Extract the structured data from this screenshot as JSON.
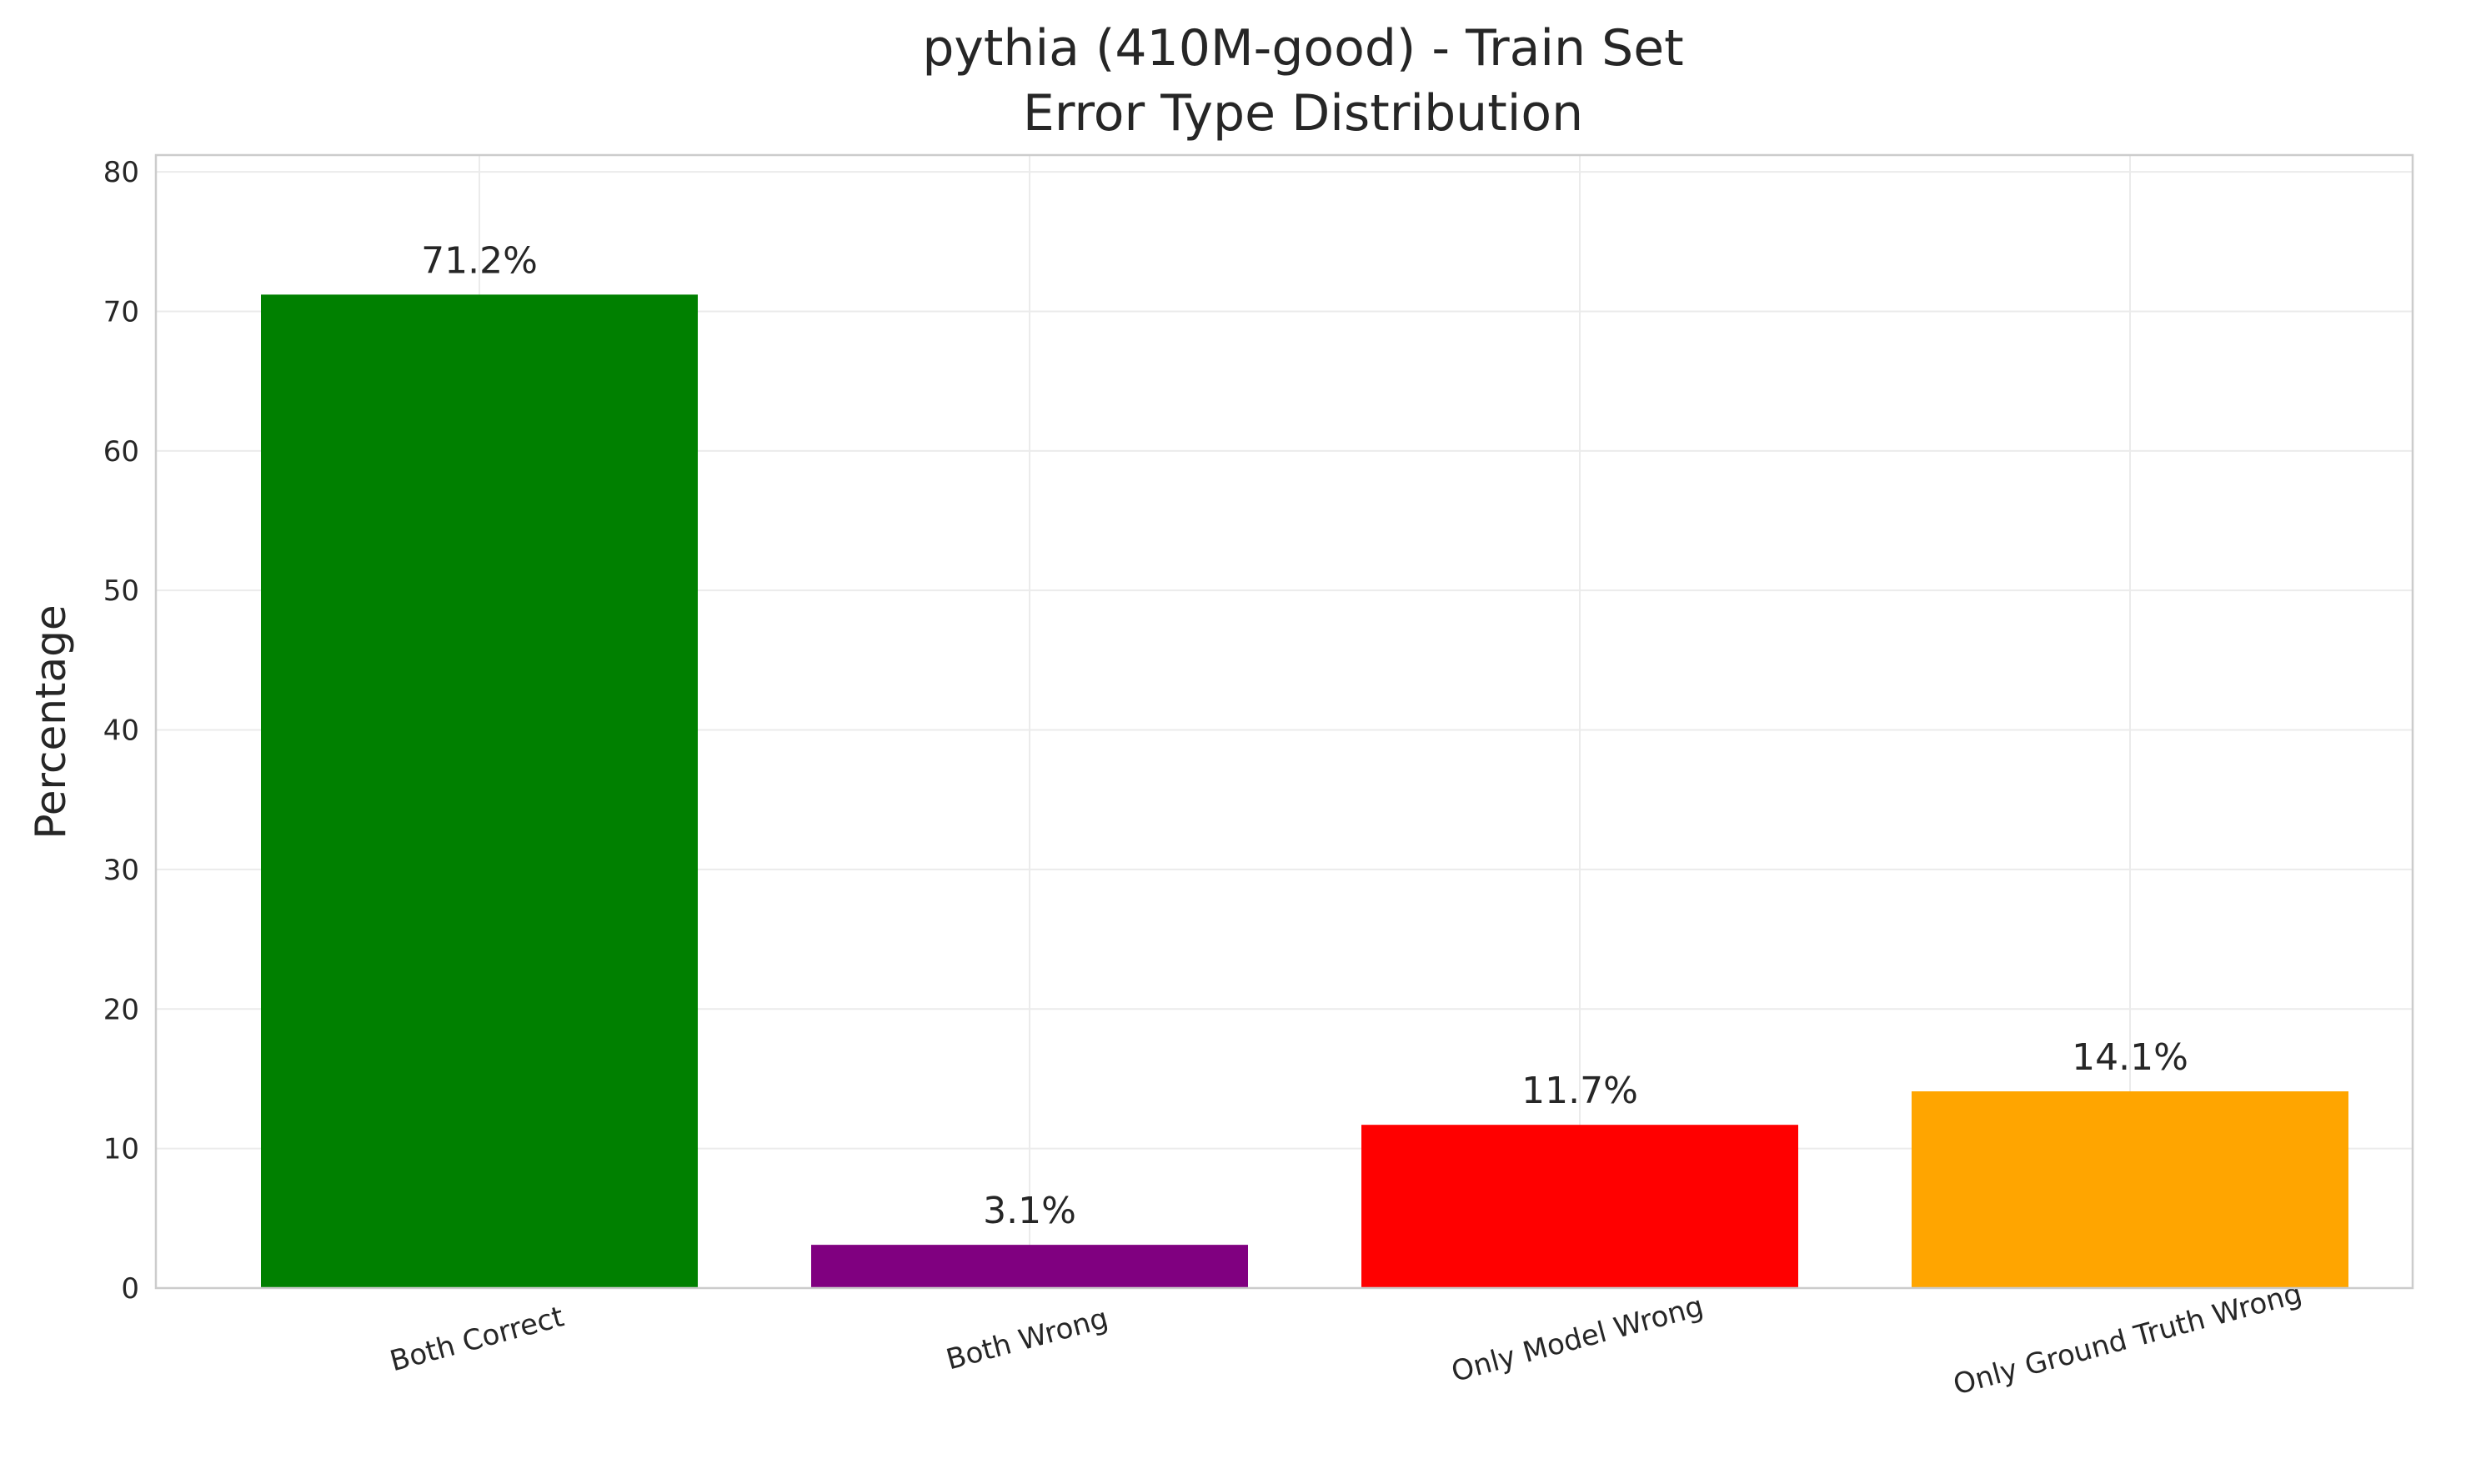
{
  "chart_data": {
    "type": "bar",
    "title": "pythia (410M-good) - Train Set",
    "subtitle": "Error Type Distribution",
    "xlabel": "",
    "ylabel": "Percentage",
    "categories": [
      "Both Correct",
      "Both Wrong",
      "Only Model Wrong",
      "Only Ground Truth Wrong"
    ],
    "values": [
      71.2,
      3.1,
      11.7,
      14.1
    ],
    "value_labels": [
      "71.2%",
      "3.1%",
      "11.7%",
      "14.1%"
    ],
    "colors": [
      "#008000",
      "#800080",
      "#ff0000",
      "#ffa500"
    ],
    "ylim": [
      0,
      81.2
    ],
    "yticks": [
      0,
      10,
      20,
      30,
      40,
      50,
      60,
      70,
      80
    ],
    "grid": true,
    "xtick_rotation_deg": 15
  }
}
